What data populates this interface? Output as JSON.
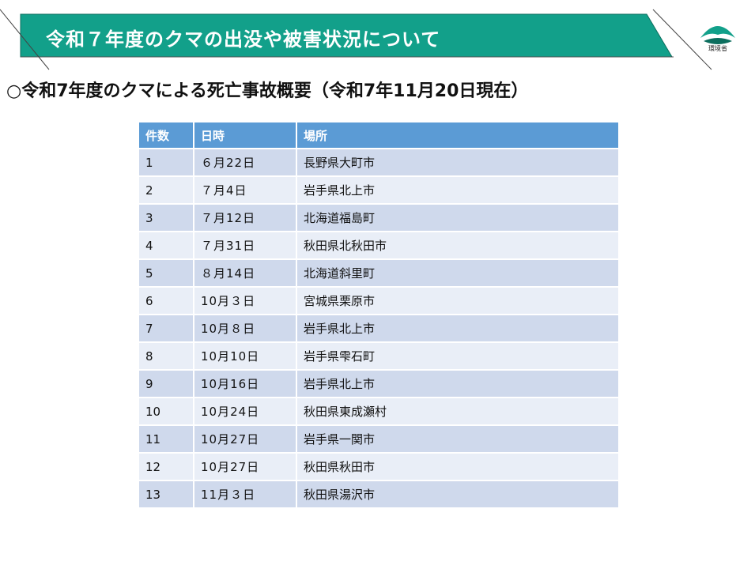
{
  "header": {
    "title": "令和７年度のクマの出没や被害状況について",
    "logo_label": "環境省",
    "colors": {
      "banner": "#12a08a",
      "banner_outline": "#0c6e5e"
    }
  },
  "subtitle": "○令和7年度のクマによる死亡事故概要（令和7年11月20日現在）",
  "table": {
    "columns": [
      "件数",
      "日時",
      "場所"
    ],
    "rows": [
      [
        "1",
        "６月22日",
        "長野県大町市"
      ],
      [
        "2",
        "７月4日",
        "岩手県北上市"
      ],
      [
        "3",
        "７月12日",
        "北海道福島町"
      ],
      [
        "4",
        "７月31日",
        "秋田県北秋田市"
      ],
      [
        "5",
        "８月14日",
        "北海道斜里町"
      ],
      [
        "6",
        "10月３日",
        "宮城県栗原市"
      ],
      [
        "7",
        "10月８日",
        "岩手県北上市"
      ],
      [
        "8",
        "10月10日",
        "岩手県雫石町"
      ],
      [
        "9",
        "10月16日",
        "岩手県北上市"
      ],
      [
        "10",
        "10月24日",
        "秋田県東成瀬村"
      ],
      [
        "11",
        "10月27日",
        "岩手県一関市"
      ],
      [
        "12",
        "10月27日",
        "秋田県秋田市"
      ],
      [
        "13",
        "11月３日",
        "秋田県湯沢市"
      ]
    ],
    "colors": {
      "header": "#5b9bd5",
      "row_odd": "#cfd9ec",
      "row_even": "#e9eef7"
    }
  }
}
